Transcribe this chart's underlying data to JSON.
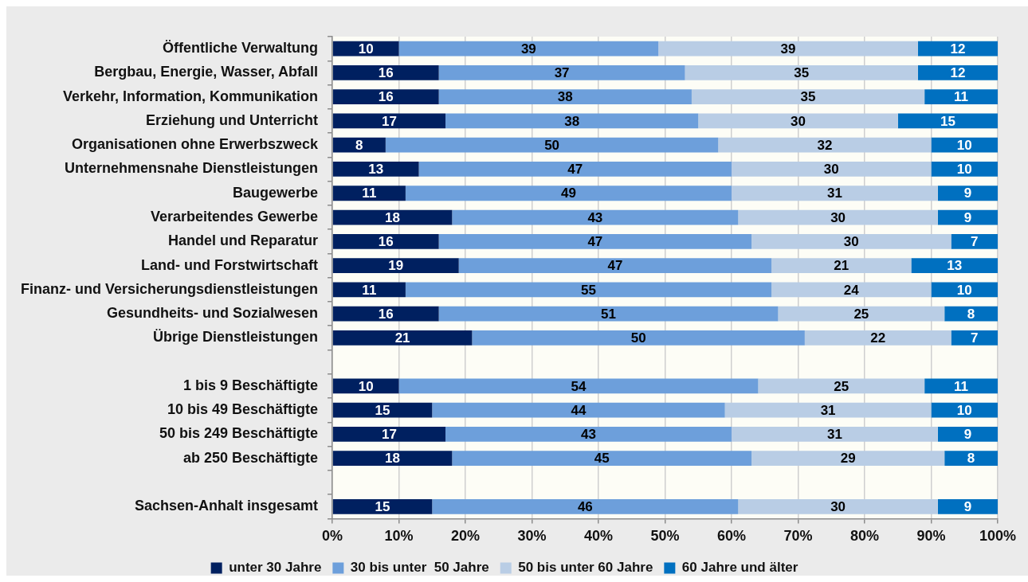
{
  "chart_data": {
    "type": "bar",
    "orientation": "horizontal",
    "stacked": true,
    "categories": [
      "Öffentliche Verwaltung",
      "Bergbau, Energie, Wasser, Abfall",
      "Verkehr, Information, Kommunikation",
      "Erziehung und Unterricht",
      "Organisationen ohne Erwerbszweck",
      "Unternehmensnahe Dienstleistungen",
      "Baugewerbe",
      "Verarbeitendes Gewerbe",
      "Handel und Reparatur",
      "Land- und Forstwirtschaft",
      "Finanz- und Versicherungsdienstleistungen",
      "Gesundheits- und Sozialwesen",
      "Übrige Dienstleistungen",
      null,
      "1 bis 9 Beschäftigte",
      "10 bis 49 Beschäftigte",
      "50 bis 249 Beschäftigte",
      "ab 250 Beschäftigte",
      null,
      "Sachsen-Anhalt insgesamt"
    ],
    "series": [
      {
        "name": "unter 30 Jahre",
        "color": "#002060",
        "values": [
          10,
          16,
          16,
          17,
          8,
          13,
          11,
          18,
          16,
          19,
          11,
          16,
          21,
          null,
          10,
          15,
          17,
          18,
          null,
          15
        ]
      },
      {
        "name": "30 bis unter  50 Jahre",
        "color": "#6d9fdb",
        "values": [
          39,
          37,
          38,
          38,
          50,
          47,
          49,
          43,
          47,
          47,
          55,
          51,
          50,
          null,
          54,
          44,
          43,
          45,
          null,
          46
        ]
      },
      {
        "name": "50 bis unter 60 Jahre",
        "color": "#b9cde5",
        "values": [
          39,
          35,
          35,
          30,
          32,
          30,
          31,
          30,
          30,
          21,
          24,
          25,
          22,
          null,
          25,
          31,
          31,
          29,
          null,
          30
        ]
      },
      {
        "name": "60 Jahre und älter",
        "color": "#0070c0",
        "values": [
          12,
          12,
          11,
          15,
          10,
          10,
          9,
          9,
          7,
          13,
          10,
          8,
          7,
          null,
          11,
          10,
          9,
          8,
          null,
          9
        ]
      }
    ],
    "xlim": [
      0,
      100
    ],
    "xticks": [
      {
        "value": 0,
        "label": "0%"
      },
      {
        "value": 10,
        "label": "10%"
      },
      {
        "value": 20,
        "label": "20%"
      },
      {
        "value": 30,
        "label": "30%"
      },
      {
        "value": 40,
        "label": "40%"
      },
      {
        "value": 50,
        "label": "50%"
      },
      {
        "value": 60,
        "label": "60%"
      },
      {
        "value": 70,
        "label": "70%"
      },
      {
        "value": 80,
        "label": "80%"
      },
      {
        "value": 90,
        "label": "90%"
      },
      {
        "value": 100,
        "label": "100%"
      }
    ],
    "grid": "x",
    "legend": "bottom",
    "data_labels": true
  }
}
